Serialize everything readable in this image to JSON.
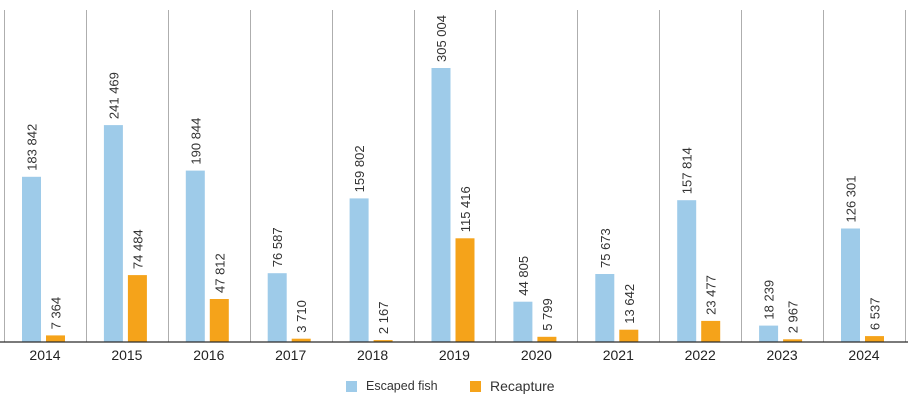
{
  "chart_data": {
    "type": "bar",
    "categories": [
      "2014",
      "2015",
      "2016",
      "2017",
      "2018",
      "2019",
      "2020",
      "2021",
      "2022",
      "2023",
      "2024"
    ],
    "series": [
      {
        "name": "Escaped fish",
        "color": "#9ecbe9",
        "values": [
          183842,
          241469,
          190844,
          76587,
          159802,
          305004,
          44805,
          75673,
          157814,
          18239,
          126301
        ],
        "labels": [
          "183 842",
          "241 469",
          "190 844",
          "76 587",
          "159 802",
          "305 004",
          "44 805",
          "75 673",
          "157 814",
          "18 239",
          "126 301"
        ]
      },
      {
        "name": "Recapture",
        "color": "#f5a31a",
        "values": [
          7364,
          74484,
          47812,
          3710,
          2167,
          115416,
          5799,
          13642,
          23477,
          2967,
          6537
        ],
        "labels": [
          "7 364",
          "74 484",
          "47 812",
          "3 710",
          "2 167",
          "115 416",
          "5 799",
          "13 642",
          "23 477",
          "2 967",
          "6 537"
        ]
      }
    ],
    "title": "",
    "xlabel": "",
    "ylabel": "",
    "ylim": [
      0,
      305004
    ],
    "grid": "vertical separators between years",
    "legend": "bottom-center"
  }
}
